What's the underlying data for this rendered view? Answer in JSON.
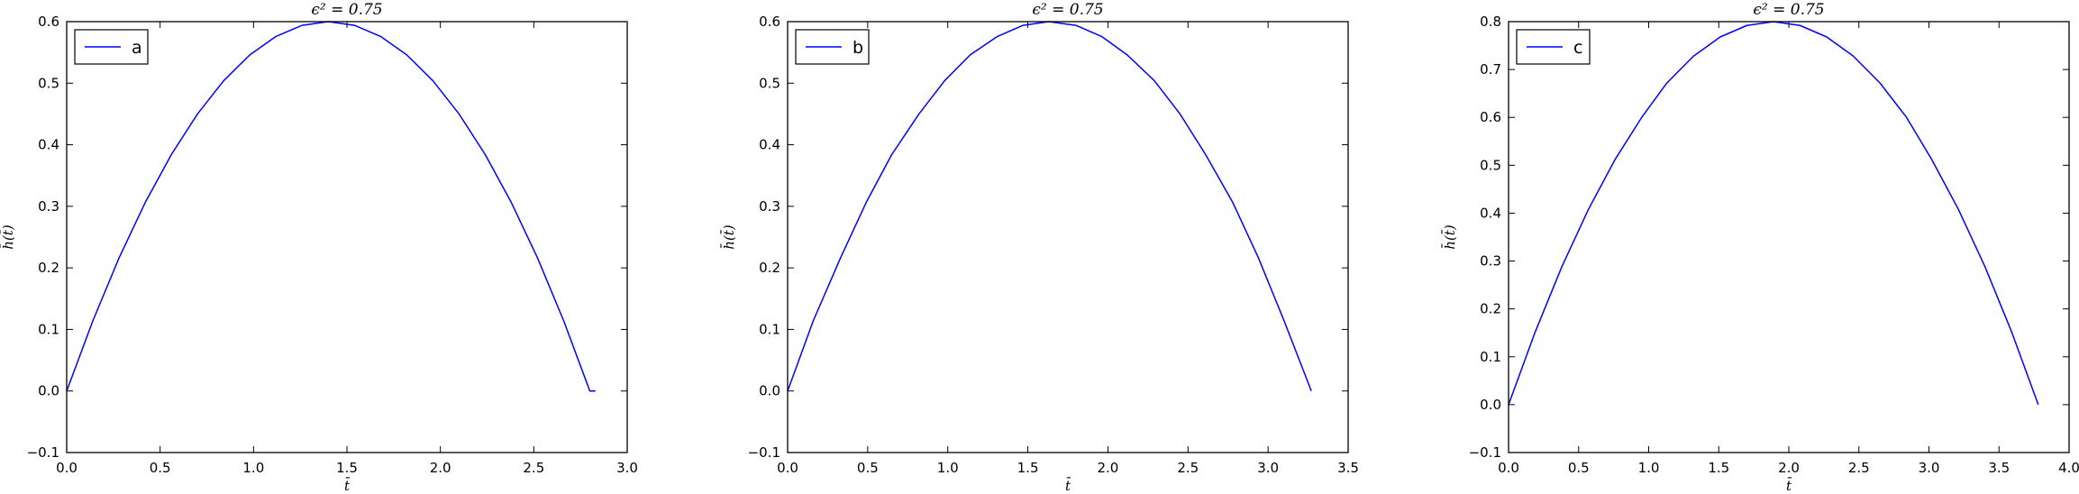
{
  "chart_data": [
    {
      "type": "line",
      "title": "ϵ² = 0.75",
      "xlabel": "t̄",
      "ylabel": "h̄(t̄)",
      "xlim": [
        0,
        3.0
      ],
      "ylim": [
        -0.1,
        0.6
      ],
      "xticks": [
        "0.0",
        "0.5",
        "1.0",
        "1.5",
        "2.0",
        "2.5",
        "3.0"
      ],
      "yticks": [
        "−0.1",
        "0.0",
        "0.1",
        "0.2",
        "0.3",
        "0.4",
        "0.5",
        "0.6"
      ],
      "legend_position": "top-left",
      "grid": false,
      "series": [
        {
          "name": "a",
          "color": "#0000ff",
          "x": [
            0,
            0.14,
            0.28,
            0.42,
            0.56,
            0.7,
            0.84,
            0.98,
            1.12,
            1.26,
            1.4,
            1.54,
            1.68,
            1.82,
            1.96,
            2.1,
            2.24,
            2.38,
            2.52,
            2.66,
            2.8,
            2.83
          ],
          "y": [
            0.0,
            0.114,
            0.216,
            0.306,
            0.384,
            0.45,
            0.504,
            0.546,
            0.576,
            0.594,
            0.6,
            0.594,
            0.576,
            0.546,
            0.504,
            0.45,
            0.384,
            0.306,
            0.216,
            0.114,
            0.0,
            0.0
          ]
        }
      ]
    },
    {
      "type": "line",
      "title": "ϵ² = 0.75",
      "xlabel": "t̄",
      "ylabel": "h̄(t̄)",
      "xlim": [
        0,
        3.5
      ],
      "ylim": [
        -0.1,
        0.6
      ],
      "xticks": [
        "0.0",
        "0.5",
        "1.0",
        "1.5",
        "2.0",
        "2.5",
        "3.0",
        "3.5"
      ],
      "yticks": [
        "−0.1",
        "0.0",
        "0.1",
        "0.2",
        "0.3",
        "0.4",
        "0.5",
        "0.6"
      ],
      "legend_position": "top-left",
      "grid": false,
      "series": [
        {
          "name": "b",
          "color": "#0000ff",
          "x": [
            0,
            0.16,
            0.33,
            0.49,
            0.65,
            0.82,
            0.98,
            1.14,
            1.31,
            1.47,
            1.63,
            1.8,
            1.96,
            2.12,
            2.29,
            2.45,
            2.61,
            2.78,
            2.94,
            3.1,
            3.27
          ],
          "y": [
            0.0,
            0.114,
            0.216,
            0.306,
            0.384,
            0.45,
            0.504,
            0.546,
            0.576,
            0.594,
            0.6,
            0.594,
            0.576,
            0.546,
            0.504,
            0.45,
            0.384,
            0.306,
            0.216,
            0.114,
            0.0
          ]
        }
      ]
    },
    {
      "type": "line",
      "title": "ϵ² = 0.75",
      "xlabel": "t̄",
      "ylabel": "h̄(t̄)",
      "xlim": [
        0,
        4.0
      ],
      "ylim": [
        -0.1,
        0.8
      ],
      "xticks": [
        "0.0",
        "0.5",
        "1.0",
        "1.5",
        "2.0",
        "2.5",
        "3.0",
        "3.5",
        "4.0"
      ],
      "yticks": [
        "−0.1",
        "0.0",
        "0.1",
        "0.2",
        "0.3",
        "0.4",
        "0.5",
        "0.6",
        "0.7",
        "0.8"
      ],
      "legend_position": "top-left",
      "grid": false,
      "series": [
        {
          "name": "c",
          "color": "#0000ff",
          "x": [
            0,
            0.19,
            0.38,
            0.57,
            0.76,
            0.95,
            1.13,
            1.32,
            1.51,
            1.7,
            1.89,
            2.08,
            2.27,
            2.46,
            2.65,
            2.84,
            3.02,
            3.21,
            3.4,
            3.59,
            3.78
          ],
          "y": [
            0.0,
            0.152,
            0.288,
            0.408,
            0.512,
            0.6,
            0.672,
            0.728,
            0.768,
            0.792,
            0.8,
            0.792,
            0.768,
            0.728,
            0.672,
            0.6,
            0.512,
            0.408,
            0.288,
            0.152,
            0.0
          ]
        }
      ]
    }
  ]
}
